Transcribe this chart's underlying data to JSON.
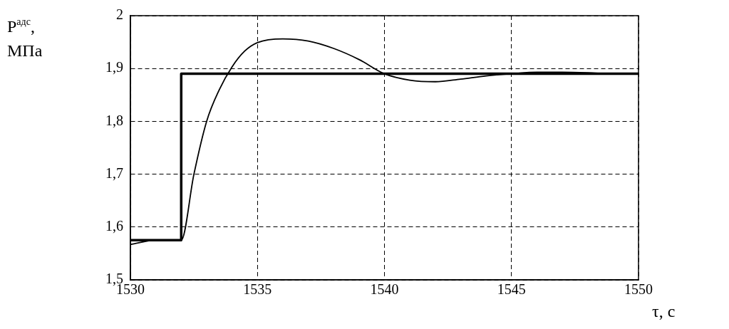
{
  "chart_data": {
    "type": "line",
    "xlabel": "τ, с",
    "ylabel": "P$^{адс}$, МПа",
    "xlim": [
      1530,
      1550
    ],
    "xticks": [
      1530,
      1535,
      1540,
      1545,
      1550
    ],
    "ylim": [
      1.5,
      2
    ],
    "yticks": [
      {
        "value": 1.5,
        "label": "1,5"
      },
      {
        "value": 1.6,
        "label": "1,6"
      },
      {
        "value": 1.7,
        "label": "1,7"
      },
      {
        "value": 1.8,
        "label": "1,8"
      },
      {
        "value": 1.9,
        "label": "1,9"
      },
      {
        "value": 2,
        "label": "2"
      }
    ],
    "grid": true,
    "marker": "none",
    "series": [
      {
        "type": "step",
        "color": "#000000",
        "x": [
          1530,
          1532,
          1550
        ],
        "values": [
          1.575,
          1.89,
          1.89
        ]
      },
      {
        "type": "line",
        "color": "#000000",
        "x": [
          1530,
          1531,
          1532,
          1532.5,
          1533,
          1533.5,
          1534,
          1534.5,
          1535,
          1536,
          1537,
          1538,
          1539,
          1540,
          1541,
          1542,
          1543,
          1544,
          1545,
          1546,
          1547,
          1548,
          1549,
          1550
        ],
        "values": [
          1.567,
          1.575,
          1.575,
          1.7,
          1.8,
          1.86,
          1.903,
          1.933,
          1.949,
          1.956,
          1.952,
          1.938,
          1.917,
          1.89,
          1.878,
          1.875,
          1.88,
          1.886,
          1.89,
          1.893,
          1.893,
          1.892,
          1.89,
          1.89
        ]
      }
    ]
  }
}
